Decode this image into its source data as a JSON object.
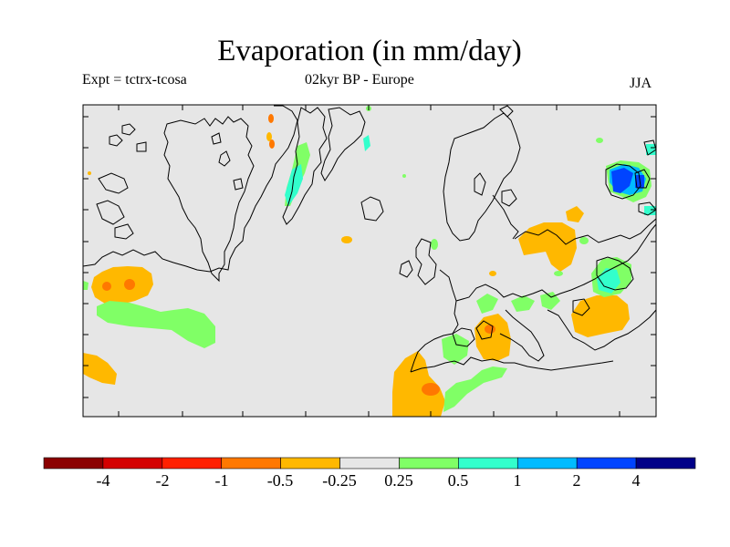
{
  "title": "Evaporation (in mm/day)",
  "experiment_label": "Expt = tctrx-tcosa",
  "period_label": "02kyr BP - Europe",
  "season_label": "JJA",
  "colorbar": {
    "bins": [
      {
        "color": "#8b0000"
      },
      {
        "color": "#d40000"
      },
      {
        "color": "#ff2000"
      },
      {
        "color": "#ff7800"
      },
      {
        "color": "#ffb800"
      },
      {
        "color": "#e6e6e6"
      },
      {
        "color": "#80ff66"
      },
      {
        "color": "#33ffcc"
      },
      {
        "color": "#00bbff"
      },
      {
        "color": "#0044ff"
      },
      {
        "color": "#000088"
      }
    ],
    "tick_labels": [
      "-4",
      "-2",
      "-1",
      "-0.5",
      "-0.25",
      "0.25",
      "0.5",
      "1",
      "2",
      "4"
    ]
  },
  "colors": {
    "neutral": "#e6e6e6",
    "coast": "#000000",
    "orange": "#ffb800",
    "dark_orange": "#ff7800",
    "green": "#80ff66",
    "teal": "#33ffcc",
    "light_blue": "#00bbff",
    "blue": "#0044ff"
  }
}
